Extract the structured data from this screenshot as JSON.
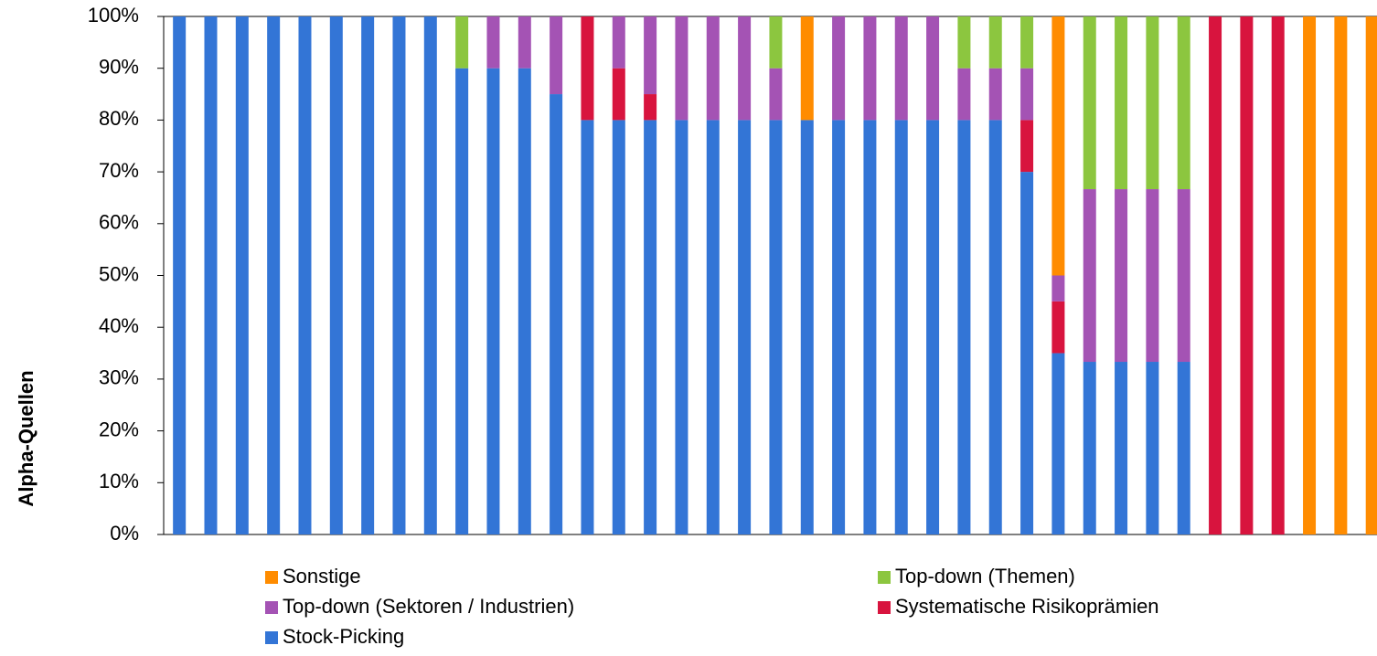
{
  "chart_data": {
    "type": "stacked_bar",
    "y_label": "Alpha-Quellen",
    "categories": [
      null,
      null,
      null,
      null,
      null,
      null,
      null,
      null,
      null,
      null,
      null,
      null,
      null,
      null,
      null,
      null,
      null,
      null,
      null,
      null,
      null,
      null,
      null,
      null,
      null,
      null,
      null,
      null,
      null,
      null,
      null,
      null,
      null,
      null,
      null,
      null,
      null,
      null,
      null
    ],
    "series": [
      {
        "name": "Stock-Picking",
        "color": "#3375d6",
        "values": [
          100,
          100,
          100,
          100,
          100,
          100,
          100,
          100,
          100,
          90,
          90,
          90,
          85,
          80,
          80,
          80,
          80,
          80,
          80,
          80,
          80,
          80,
          80,
          80,
          80,
          80,
          80,
          70,
          35,
          33.33,
          33.33,
          33.33,
          33.33,
          0,
          0,
          0,
          0,
          0,
          0
        ]
      },
      {
        "name": "Systematische Risikoprämien",
        "color": "#d8143e",
        "values": [
          0,
          0,
          0,
          0,
          0,
          0,
          0,
          0,
          0,
          0,
          0,
          0,
          0,
          20,
          10,
          5,
          0,
          0,
          0,
          0,
          0,
          0,
          0,
          0,
          0,
          0,
          0,
          10,
          10,
          0,
          0,
          0,
          0,
          100,
          100,
          100,
          0,
          0,
          0
        ]
      },
      {
        "name": "Top-down (Sektoren / Industrien)",
        "color": "#a453b4",
        "values": [
          0,
          0,
          0,
          0,
          0,
          0,
          0,
          0,
          0,
          0,
          10,
          10,
          15,
          0,
          10,
          15,
          20,
          20,
          20,
          10,
          0,
          20,
          20,
          20,
          20,
          10,
          10,
          10,
          5,
          33.33,
          33.33,
          33.33,
          33.33,
          0,
          0,
          0,
          0,
          0,
          0
        ]
      },
      {
        "name": "Top-down (Themen)",
        "color": "#8cc63f",
        "values": [
          0,
          0,
          0,
          0,
          0,
          0,
          0,
          0,
          0,
          10,
          0,
          0,
          0,
          0,
          0,
          0,
          0,
          0,
          0,
          10,
          0,
          0,
          0,
          0,
          0,
          10,
          10,
          10,
          0,
          33.33,
          33.33,
          33.33,
          33.33,
          0,
          0,
          0,
          0,
          0,
          0
        ]
      },
      {
        "name": "Sonstige",
        "color": "#ff8c00",
        "values": [
          0,
          0,
          0,
          0,
          0,
          0,
          0,
          0,
          0,
          0,
          0,
          0,
          0,
          0,
          0,
          0,
          0,
          0,
          0,
          0,
          20,
          0,
          0,
          0,
          0,
          0,
          0,
          0,
          50,
          0,
          0,
          0,
          0,
          0,
          0,
          0,
          100,
          100,
          100
        ]
      }
    ],
    "ylim": [
      0,
      100
    ],
    "yticks": [
      {
        "value": 0,
        "label": "0%"
      },
      {
        "value": 10,
        "label": "10%"
      },
      {
        "value": 20,
        "label": "20%"
      },
      {
        "value": 30,
        "label": "30%"
      },
      {
        "value": 40,
        "label": "40%"
      },
      {
        "value": 50,
        "label": "50%"
      },
      {
        "value": 60,
        "label": "60%"
      },
      {
        "value": 70,
        "label": "70%"
      },
      {
        "value": 80,
        "label": "80%"
      },
      {
        "value": 90,
        "label": "90%"
      },
      {
        "value": 100,
        "label": "100%"
      }
    ],
    "legend": "bottom"
  }
}
